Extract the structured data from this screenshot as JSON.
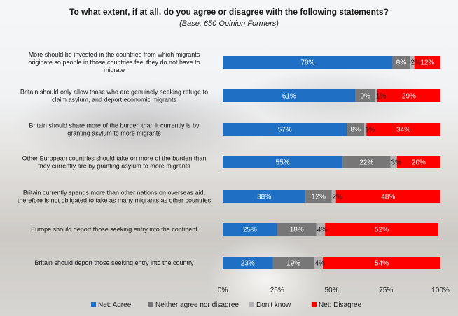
{
  "chart_data": {
    "type": "bar",
    "orientation": "horizontal",
    "stacked": true,
    "title": "To what extent, if at all, do you agree or disagree with the following statements?",
    "subtitle": "(Base: 650 Opinion Formers)",
    "categories": [
      [
        "More should be invested in the countries from which migrants",
        "originate so people in those countries feel they do not have to",
        "migrate"
      ],
      [
        "Britain should only allow those who are genuinely seeking refuge to",
        "claim asylum, and deport economic migrants"
      ],
      [
        "Britain should share more of the burden than it currently is by",
        "granting asylum to more migrants"
      ],
      [
        "Other European countries should take on more of the burden than",
        "they currently are by granting asylum to more migrants"
      ],
      [
        "Britain currently spends more than other nations on overseas aid,",
        "therefore is not obligated to take as many migrants as other countries"
      ],
      [
        "Europe should deport those seeking entry into the continent"
      ],
      [
        "Britain should deport those seeking entry into the country"
      ]
    ],
    "series": [
      {
        "name": "Net: Agree",
        "color": "#1f6fc5",
        "values": [
          78,
          61,
          57,
          55,
          38,
          25,
          23
        ],
        "labels": [
          "78%",
          "61%",
          "57%",
          "55%",
          "38%",
          "25%",
          "23%"
        ]
      },
      {
        "name": "Neither agree nor disagree",
        "color": "#777777",
        "values": [
          8,
          9,
          8,
          22,
          12,
          18,
          19
        ],
        "labels": [
          "8%",
          "9%",
          "8%",
          "22%",
          "12%",
          "18%",
          "19%"
        ]
      },
      {
        "name": "Don't know",
        "color": "#b3b3b3",
        "values": [
          2,
          1,
          1,
          3,
          2,
          4,
          4
        ],
        "labels": [
          "2%",
          "1%",
          "1%",
          "3%",
          "2%",
          "4%",
          "4%"
        ]
      },
      {
        "name": "Net: Disagree",
        "color": "#ff0000",
        "values": [
          12,
          29,
          34,
          20,
          48,
          52,
          54
        ],
        "labels": [
          "12%",
          "29%",
          "34%",
          "20%",
          "48%",
          "52%",
          "54%"
        ]
      }
    ],
    "xlim": [
      0,
      100
    ],
    "xticks": [
      "0%",
      "25%",
      "50%",
      "75%",
      "100%"
    ],
    "legend_position": "bottom",
    "grid": false
  }
}
